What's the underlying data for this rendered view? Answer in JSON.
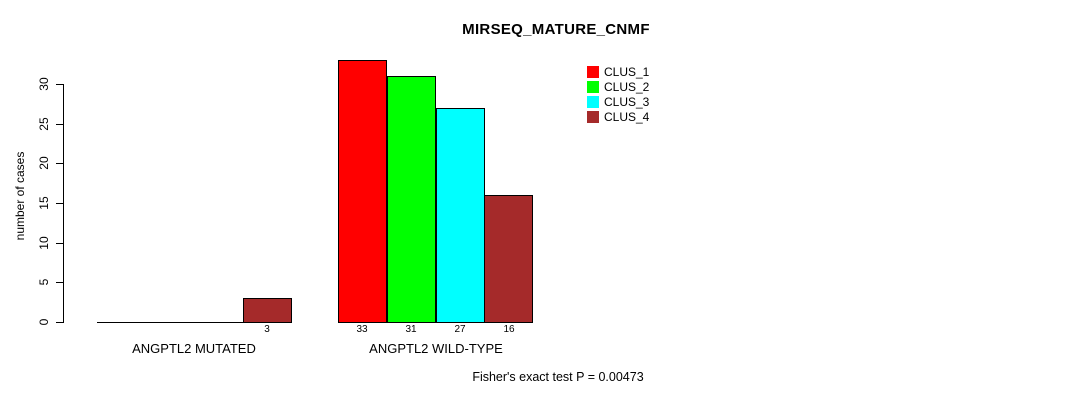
{
  "title": "MIRSEQ_MATURE_CNMF",
  "chart_data": {
    "type": "bar",
    "title": "MIRSEQ_MATURE_CNMF",
    "xlabel": "",
    "ylabel": "number of cases",
    "yticks": [
      0,
      5,
      10,
      15,
      20,
      25,
      30
    ],
    "ylim": [
      0,
      33
    ],
    "grid": false,
    "legend_position": "top-right",
    "categories": [
      "ANGPTL2 MUTATED",
      "ANGPTL2 WILD-TYPE"
    ],
    "series": [
      {
        "name": "CLUS_1",
        "color": "#FF0000",
        "values": [
          0,
          33
        ]
      },
      {
        "name": "CLUS_2",
        "color": "#00FF00",
        "values": [
          0,
          31
        ]
      },
      {
        "name": "CLUS_3",
        "color": "#00FFFF",
        "values": [
          0,
          27
        ]
      },
      {
        "name": "CLUS_4",
        "color": "#A52A2A",
        "values": [
          3,
          16
        ]
      }
    ],
    "bar_labels": [
      [
        "",
        "",
        "",
        "3"
      ],
      [
        "33",
        "31",
        "27",
        "16"
      ]
    ],
    "annotation": "Fisher's exact test P = 0.00473"
  }
}
